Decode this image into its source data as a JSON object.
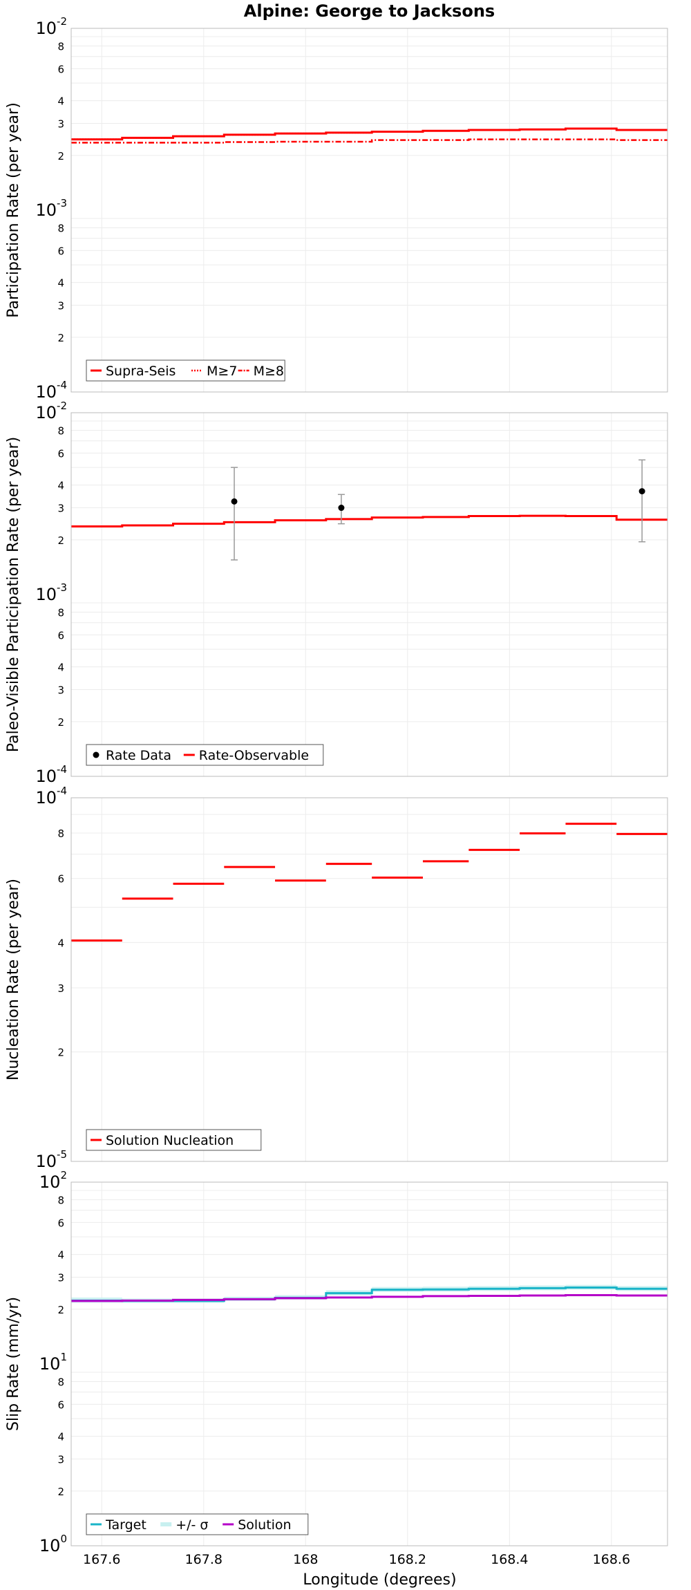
{
  "chart_data": [
    {
      "type": "line",
      "title": "Alpine: George to Jacksons",
      "ylabel": "Participation Rate (per year)",
      "yscale": "log",
      "ylim": [
        0.0001,
        0.01
      ],
      "xlim": [
        167.54,
        168.71
      ],
      "step_x": [
        167.54,
        167.64,
        167.74,
        167.84,
        167.94,
        168.04,
        168.13,
        168.23,
        168.32,
        168.42,
        168.51,
        168.61,
        168.71
      ],
      "series": [
        {
          "name": "Supra-Seis",
          "color": "#ff0000",
          "style": "solid",
          "values": [
            0.00245,
            0.0025,
            0.00255,
            0.0026,
            0.00264,
            0.00267,
            0.0027,
            0.00273,
            0.00276,
            0.00278,
            0.00281,
            0.00276
          ]
        },
        {
          "name": "M≥7",
          "color": "#ff0000",
          "style": "dotted",
          "values": [
            0.00245,
            0.0025,
            0.00255,
            0.0026,
            0.00264,
            0.00267,
            0.0027,
            0.00273,
            0.00276,
            0.00278,
            0.00281,
            0.00276
          ]
        },
        {
          "name": "M≥8",
          "color": "#ff0000",
          "style": "dashdot",
          "values": [
            0.00235,
            0.00235,
            0.00235,
            0.00237,
            0.00238,
            0.00238,
            0.00243,
            0.00243,
            0.00245,
            0.00245,
            0.00245,
            0.00243
          ]
        }
      ],
      "legend": [
        "Supra-Seis",
        "M≥7",
        "M≥8"
      ],
      "legend_position": "bottom-left",
      "grid": true
    },
    {
      "type": "line",
      "ylabel": "Paleo-Visible Participation Rate (per year)",
      "yscale": "log",
      "ylim": [
        0.0001,
        0.01
      ],
      "xlim": [
        167.54,
        168.71
      ],
      "step_x": [
        167.54,
        167.64,
        167.74,
        167.84,
        167.94,
        168.04,
        168.13,
        168.23,
        168.32,
        168.42,
        168.51,
        168.61,
        168.71
      ],
      "series": [
        {
          "name": "Rate-Observable",
          "color": "#ff0000",
          "style": "solid",
          "values": [
            0.00237,
            0.0024,
            0.00245,
            0.0025,
            0.00256,
            0.0026,
            0.00265,
            0.00267,
            0.0027,
            0.00271,
            0.0027,
            0.00258
          ]
        }
      ],
      "points": {
        "name": "Rate Data",
        "color": "#000000",
        "x": [
          167.86,
          168.07,
          168.66
        ],
        "y": [
          0.00325,
          0.003,
          0.0037
        ],
        "lower": [
          0.00155,
          0.00245,
          0.00195
        ],
        "upper": [
          0.005,
          0.00355,
          0.0055
        ]
      },
      "legend": [
        "Rate Data",
        "Rate-Observable"
      ],
      "legend_position": "bottom-left",
      "grid": true
    },
    {
      "type": "line",
      "ylabel": "Nucleation Rate (per year)",
      "yscale": "log",
      "ylim": [
        1e-05,
        0.0001
      ],
      "xlim": [
        167.54,
        168.71
      ],
      "step_x": [
        167.54,
        167.64,
        167.74,
        167.84,
        167.94,
        168.04,
        168.13,
        168.23,
        168.32,
        168.42,
        168.51,
        168.61,
        168.71
      ],
      "series": [
        {
          "name": "Solution Nucleation",
          "color": "#ff0000",
          "style": "segments",
          "values": [
            4.05e-05,
            5.28e-05,
            5.8e-05,
            6.45e-05,
            5.92e-05,
            6.58e-05,
            6.03e-05,
            6.69e-05,
            7.19e-05,
            7.98e-05,
            8.48e-05,
            7.95e-05
          ]
        }
      ],
      "legend": [
        "Solution Nucleation"
      ],
      "legend_position": "bottom-left",
      "grid": true
    },
    {
      "type": "line",
      "ylabel": "Slip Rate (mm/yr)",
      "xlabel": "Longitude (degrees)",
      "yscale": "log",
      "ylim": [
        1,
        100
      ],
      "xlim": [
        167.54,
        168.71
      ],
      "xticks": [
        167.6,
        167.8,
        168,
        168.2,
        168.4,
        168.6
      ],
      "xtick_labels": [
        "167.6",
        "167.8",
        "168",
        "168.2",
        "168.4",
        "168.6"
      ],
      "step_x": [
        167.54,
        167.64,
        167.74,
        167.84,
        167.94,
        168.04,
        168.13,
        168.23,
        168.32,
        168.42,
        168.51,
        168.61,
        168.71
      ],
      "series": [
        {
          "name": "Target",
          "color": "#1ab4c8",
          "style": "solid",
          "values": [
            22.3,
            22.2,
            22.2,
            22.7,
            23.1,
            24.5,
            25.6,
            25.7,
            25.9,
            26.1,
            26.3,
            25.9
          ]
        },
        {
          "name": "+/- σ",
          "color": "#c8f0f0",
          "style": "band",
          "lower": [
            21.7,
            21.7,
            21.7,
            22.2,
            22.6,
            23.8,
            24.9,
            25.0,
            25.2,
            25.4,
            25.6,
            25.2
          ],
          "upper": [
            23.2,
            22.9,
            22.9,
            23.4,
            23.9,
            25.4,
            26.5,
            26.6,
            26.8,
            27.0,
            27.2,
            26.8
          ]
        },
        {
          "name": "Solution",
          "color": "#b400c8",
          "style": "solid",
          "values": [
            22.2,
            22.3,
            22.5,
            22.7,
            23.0,
            23.2,
            23.4,
            23.6,
            23.7,
            23.8,
            23.9,
            23.8
          ]
        }
      ],
      "legend": [
        "Target",
        "+/- σ",
        "Solution"
      ],
      "legend_position": "bottom-left",
      "grid": true
    }
  ]
}
